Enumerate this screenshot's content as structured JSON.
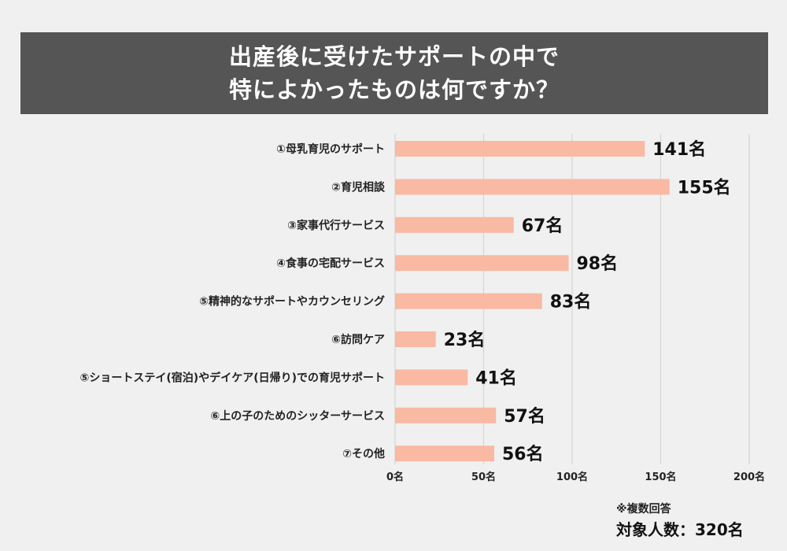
{
  "title": {
    "line1": "出産後に受けたサポートの中で",
    "line2": "特によかったものは何ですか？"
  },
  "note": "※複数回答",
  "respondents": "対象人数：320名",
  "colors": {
    "bar": "#f9b9a2",
    "title_bg": "#555555",
    "grid": "#d4d4d4",
    "background": "#f0f0f0"
  },
  "chart_data": {
    "type": "bar",
    "orientation": "horizontal",
    "title": "出産後に受けたサポートの中で特によかったものは何ですか？",
    "categories": [
      "①母乳育児のサポート",
      "②育児相談",
      "③家事代行サービス",
      "④食事の宅配サービス",
      "⑤精神的なサポートやカウンセリング",
      "⑥訪問ケア",
      "⑤ショートステイ(宿泊)やデイケア(日帰り)での育児サポート",
      "⑥上の子のためのシッターサービス",
      "⑦その他"
    ],
    "values": [
      141,
      155,
      67,
      98,
      83,
      23,
      41,
      57,
      56
    ],
    "value_labels": [
      "141名",
      "155名",
      "67名",
      "98名",
      "83名",
      "23名",
      "41名",
      "57名",
      "56名"
    ],
    "xlim": [
      0,
      200
    ],
    "xticks": [
      0,
      50,
      100,
      150,
      200
    ],
    "xtick_labels": [
      "0名",
      "50名",
      "100名",
      "150名",
      "200名"
    ],
    "xlabel": "",
    "ylabel": "",
    "grid": true,
    "legend": "none"
  }
}
